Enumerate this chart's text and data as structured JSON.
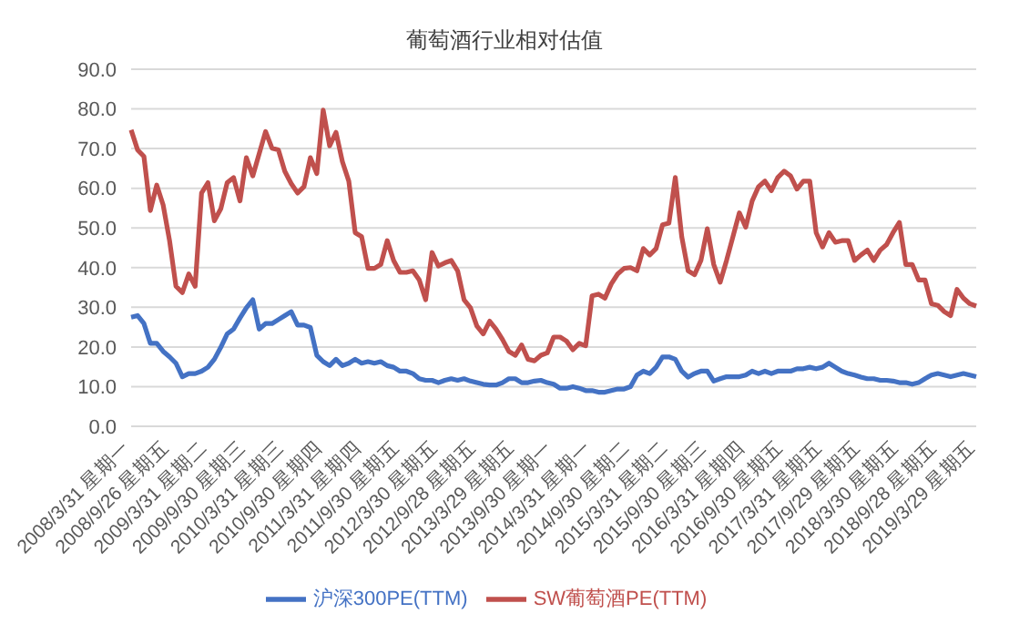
{
  "chart_data": {
    "type": "line",
    "title": "葡萄酒行业相对估值",
    "categories": [
      "2008/3/31 星期一",
      null,
      null,
      null,
      null,
      null,
      "2008/9/26 星期五",
      null,
      null,
      null,
      null,
      null,
      "2009/3/31 星期二",
      null,
      null,
      null,
      null,
      null,
      "2009/9/30 星期三",
      null,
      null,
      null,
      null,
      null,
      "2010/3/31 星期三",
      null,
      null,
      null,
      null,
      null,
      "2010/9/30 星期四",
      null,
      null,
      null,
      null,
      null,
      "2011/3/31 星期四",
      null,
      null,
      null,
      null,
      null,
      "2011/9/30 星期五",
      null,
      null,
      null,
      null,
      null,
      "2012/3/30 星期五",
      null,
      null,
      null,
      null,
      null,
      "2012/9/28 星期五",
      null,
      null,
      null,
      null,
      null,
      "2013/3/29 星期五",
      null,
      null,
      null,
      null,
      null,
      "2013/9/30 星期一",
      null,
      null,
      null,
      null,
      null,
      "2014/3/31 星期一",
      null,
      null,
      null,
      null,
      null,
      "2014/9/30 星期二",
      null,
      null,
      null,
      null,
      null,
      "2015/3/31 星期二",
      null,
      null,
      null,
      null,
      null,
      "2015/9/30 星期三",
      null,
      null,
      null,
      null,
      null,
      "2016/3/31 星期四",
      null,
      null,
      null,
      null,
      null,
      "2016/9/30 星期五",
      null,
      null,
      null,
      null,
      null,
      "2017/3/31 星期五",
      null,
      null,
      null,
      null,
      null,
      "2017/9/29 星期五",
      null,
      null,
      null,
      null,
      null,
      "2018/3/30 星期五",
      null,
      null,
      null,
      null,
      null,
      "2018/9/28 星期五",
      null,
      null,
      null,
      null,
      null,
      "2019/3/29 星期五"
    ],
    "series": [
      {
        "name": "沪深300PE(TTM)",
        "color": "#4472c4",
        "values": [
          27.5,
          27.9,
          25.9,
          20.9,
          20.9,
          18.9,
          17.5,
          15.9,
          12.5,
          13.3,
          13.3,
          13.9,
          14.9,
          16.9,
          19.9,
          23.3,
          24.5,
          27.3,
          29.9,
          31.9,
          24.5,
          25.9,
          25.9,
          26.9,
          27.9,
          28.9,
          25.5,
          25.5,
          24.9,
          17.9,
          16.3,
          15.3,
          16.9,
          15.3,
          15.9,
          16.9,
          15.9,
          16.3,
          15.9,
          16.3,
          15.3,
          14.9,
          13.9,
          13.9,
          13.3,
          12,
          11.6,
          11.6,
          11,
          11.6,
          12,
          11.6,
          12,
          11.4,
          11,
          10.6,
          10.4,
          10.4,
          11,
          12,
          12,
          11,
          11,
          11.4,
          11.6,
          11,
          10.6,
          9.6,
          9.6,
          10,
          9.6,
          9,
          9,
          8.6,
          8.6,
          9,
          9.4,
          9.4,
          10,
          12.9,
          13.9,
          13.3,
          14.9,
          17.5,
          17.5,
          16.9,
          13.9,
          12.4,
          13.3,
          13.9,
          13.9,
          11.4,
          12,
          12.5,
          12.5,
          12.5,
          12.9,
          13.9,
          13.3,
          13.9,
          13.3,
          13.9,
          13.9,
          13.9,
          14.5,
          14.5,
          14.9,
          14.5,
          14.9,
          15.9,
          14.9,
          13.9,
          13.3,
          12.9,
          12.4,
          12,
          12,
          11.6,
          11.6,
          11.4,
          11,
          11,
          10.6,
          11,
          12,
          12.9,
          13.3,
          12.9,
          12.5,
          12.9,
          13.3,
          12.9,
          12.5
        ]
      },
      {
        "name": "SW葡萄酒PE(TTM)",
        "color": "#c0504d",
        "values": [
          74.7,
          69.7,
          68,
          54.4,
          60.8,
          55.8,
          46.8,
          35.3,
          33.7,
          38.4,
          35.3,
          58.8,
          61.4,
          51.8,
          54.8,
          61.4,
          62.7,
          56.8,
          67.7,
          63.1,
          68.7,
          74.3,
          70.1,
          69.7,
          64.3,
          61.2,
          58.8,
          60.4,
          67.7,
          63.7,
          79.7,
          70.7,
          74.1,
          66.7,
          61.8,
          48.8,
          47.8,
          39.8,
          39.8,
          40.8,
          46.8,
          41.8,
          38.8,
          38.8,
          39.2,
          36.9,
          31.9,
          43.8,
          40.4,
          41.2,
          41.8,
          39.2,
          31.9,
          29.9,
          25.3,
          23.3,
          26.5,
          24.5,
          21.9,
          18.9,
          17.9,
          20.5,
          16.9,
          16.5,
          17.9,
          18.5,
          22.5,
          22.5,
          21.5,
          19.3,
          20.9,
          20.3,
          32.9,
          33.3,
          32.3,
          35.9,
          38.4,
          39.8,
          40,
          39.2,
          44.8,
          43.2,
          44.8,
          50.8,
          51.2,
          62.7,
          47.8,
          39.2,
          38.2,
          41.8,
          49.8,
          40.8,
          36.3,
          41.8,
          47.8,
          53.8,
          50.2,
          56.8,
          60.4,
          61.8,
          59.4,
          62.7,
          64.3,
          63.1,
          59.8,
          61.8,
          61.8,
          48.8,
          45.2,
          48.8,
          46.4,
          46.8,
          46.8,
          41.8,
          43.2,
          44.4,
          41.8,
          44.4,
          45.8,
          48.8,
          51.4,
          40.8,
          40.8,
          36.9,
          36.9,
          30.9,
          30.5,
          28.9,
          27.9,
          34.5,
          32.3,
          30.9,
          30.3
        ]
      }
    ],
    "ylim": [
      0,
      90
    ],
    "yticks": [
      {
        "value": 0,
        "label": "0.0"
      },
      {
        "value": 10,
        "label": "10.0"
      },
      {
        "value": 20,
        "label": "20.0"
      },
      {
        "value": 30,
        "label": "30.0"
      },
      {
        "value": 40,
        "label": "40.0"
      },
      {
        "value": 50,
        "label": "50.0"
      },
      {
        "value": 60,
        "label": "60.0"
      },
      {
        "value": 70,
        "label": "70.0"
      },
      {
        "value": 80,
        "label": "80.0"
      },
      {
        "value": 90,
        "label": "90.0"
      }
    ],
    "grid": "y",
    "legend": "bottom"
  }
}
